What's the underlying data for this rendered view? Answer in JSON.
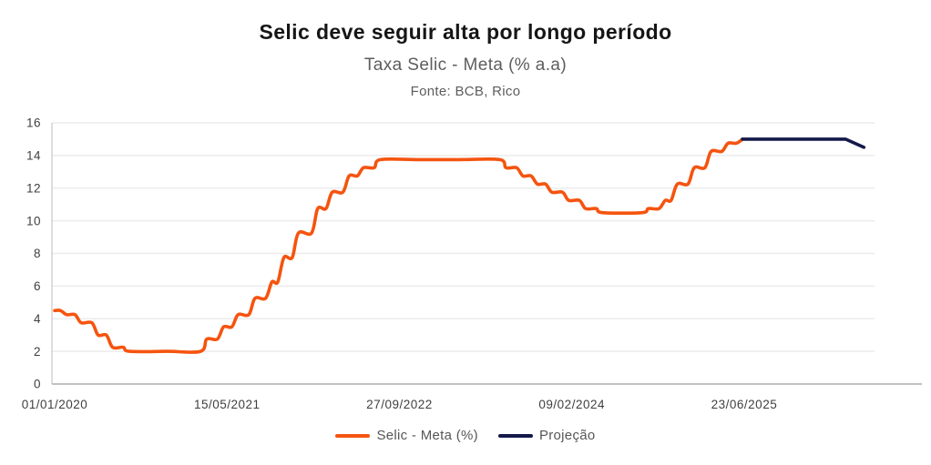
{
  "title": "Selic deve seguir alta por longo período",
  "subtitle": "Taxa Selic - Meta (% a.a)",
  "source": "Fonte: BCB, Rico",
  "legend": [
    {
      "label": "Selic - Meta (%)",
      "color": "#F5540F"
    },
    {
      "label": "Projeção",
      "color": "#14194A"
    }
  ],
  "chart_data": {
    "type": "line",
    "title": "Selic deve seguir alta por longo período",
    "subtitle": "Taxa Selic - Meta (% a.a)",
    "source": "Fonte: BCB, Rico",
    "grid": "horizontal",
    "legend_position": "bottom",
    "colors": {
      "gridline": "#ECECEC",
      "x_axis_line": "#B9B9B9",
      "y_axis_line": "#C9C9C9"
    },
    "y_axis": {
      "min": 0,
      "max": 16,
      "ticks": [
        0,
        2,
        4,
        6,
        8,
        10,
        12,
        14,
        16
      ]
    },
    "x_axis": {
      "tick_labels": [
        {
          "label": "01/01/2020",
          "date": "2020-01-01"
        },
        {
          "label": "15/05/2021",
          "date": "2021-05-15"
        },
        {
          "label": "27/09/2022",
          "date": "2022-09-27"
        },
        {
          "label": "09/02/2024",
          "date": "2024-02-09"
        },
        {
          "label": "23/06/2025",
          "date": "2025-06-23"
        }
      ]
    },
    "x_domain": [
      "2020-01-01",
      "2026-07-06"
    ],
    "series": [
      {
        "name": "Selic - Meta (%)",
        "color": "#F5540F",
        "step_hold": true,
        "smooth": true,
        "points": [
          [
            "2020-01-01",
            4.5
          ],
          [
            "2020-02-05",
            4.25
          ],
          [
            "2020-03-18",
            3.75
          ],
          [
            "2020-05-06",
            3.0
          ],
          [
            "2020-06-17",
            2.25
          ],
          [
            "2020-08-05",
            2.0
          ],
          [
            "2021-03-17",
            2.75
          ],
          [
            "2021-05-05",
            3.5
          ],
          [
            "2021-06-16",
            4.25
          ],
          [
            "2021-08-04",
            5.25
          ],
          [
            "2021-09-22",
            6.25
          ],
          [
            "2021-10-27",
            7.75
          ],
          [
            "2021-12-08",
            9.25
          ],
          [
            "2022-02-02",
            10.75
          ],
          [
            "2022-03-16",
            11.75
          ],
          [
            "2022-05-04",
            12.75
          ],
          [
            "2022-06-15",
            13.25
          ],
          [
            "2022-08-03",
            13.75
          ],
          [
            "2023-08-02",
            13.25
          ],
          [
            "2023-09-20",
            12.75
          ],
          [
            "2023-11-01",
            12.25
          ],
          [
            "2023-12-13",
            11.75
          ],
          [
            "2024-01-31",
            11.25
          ],
          [
            "2024-03-20",
            10.75
          ],
          [
            "2024-05-08",
            10.5
          ],
          [
            "2024-09-18",
            10.75
          ],
          [
            "2024-11-06",
            11.25
          ],
          [
            "2024-12-11",
            12.25
          ],
          [
            "2025-01-29",
            13.25
          ],
          [
            "2025-03-19",
            14.25
          ],
          [
            "2025-05-07",
            14.75
          ],
          [
            "2025-06-18",
            15.0
          ]
        ]
      },
      {
        "name": "Projeção",
        "color": "#14194A",
        "step_hold": false,
        "smooth": false,
        "points": [
          [
            "2025-06-18",
            15.0
          ],
          [
            "2026-04-13",
            15.0
          ],
          [
            "2026-06-05",
            14.5
          ]
        ]
      }
    ]
  }
}
